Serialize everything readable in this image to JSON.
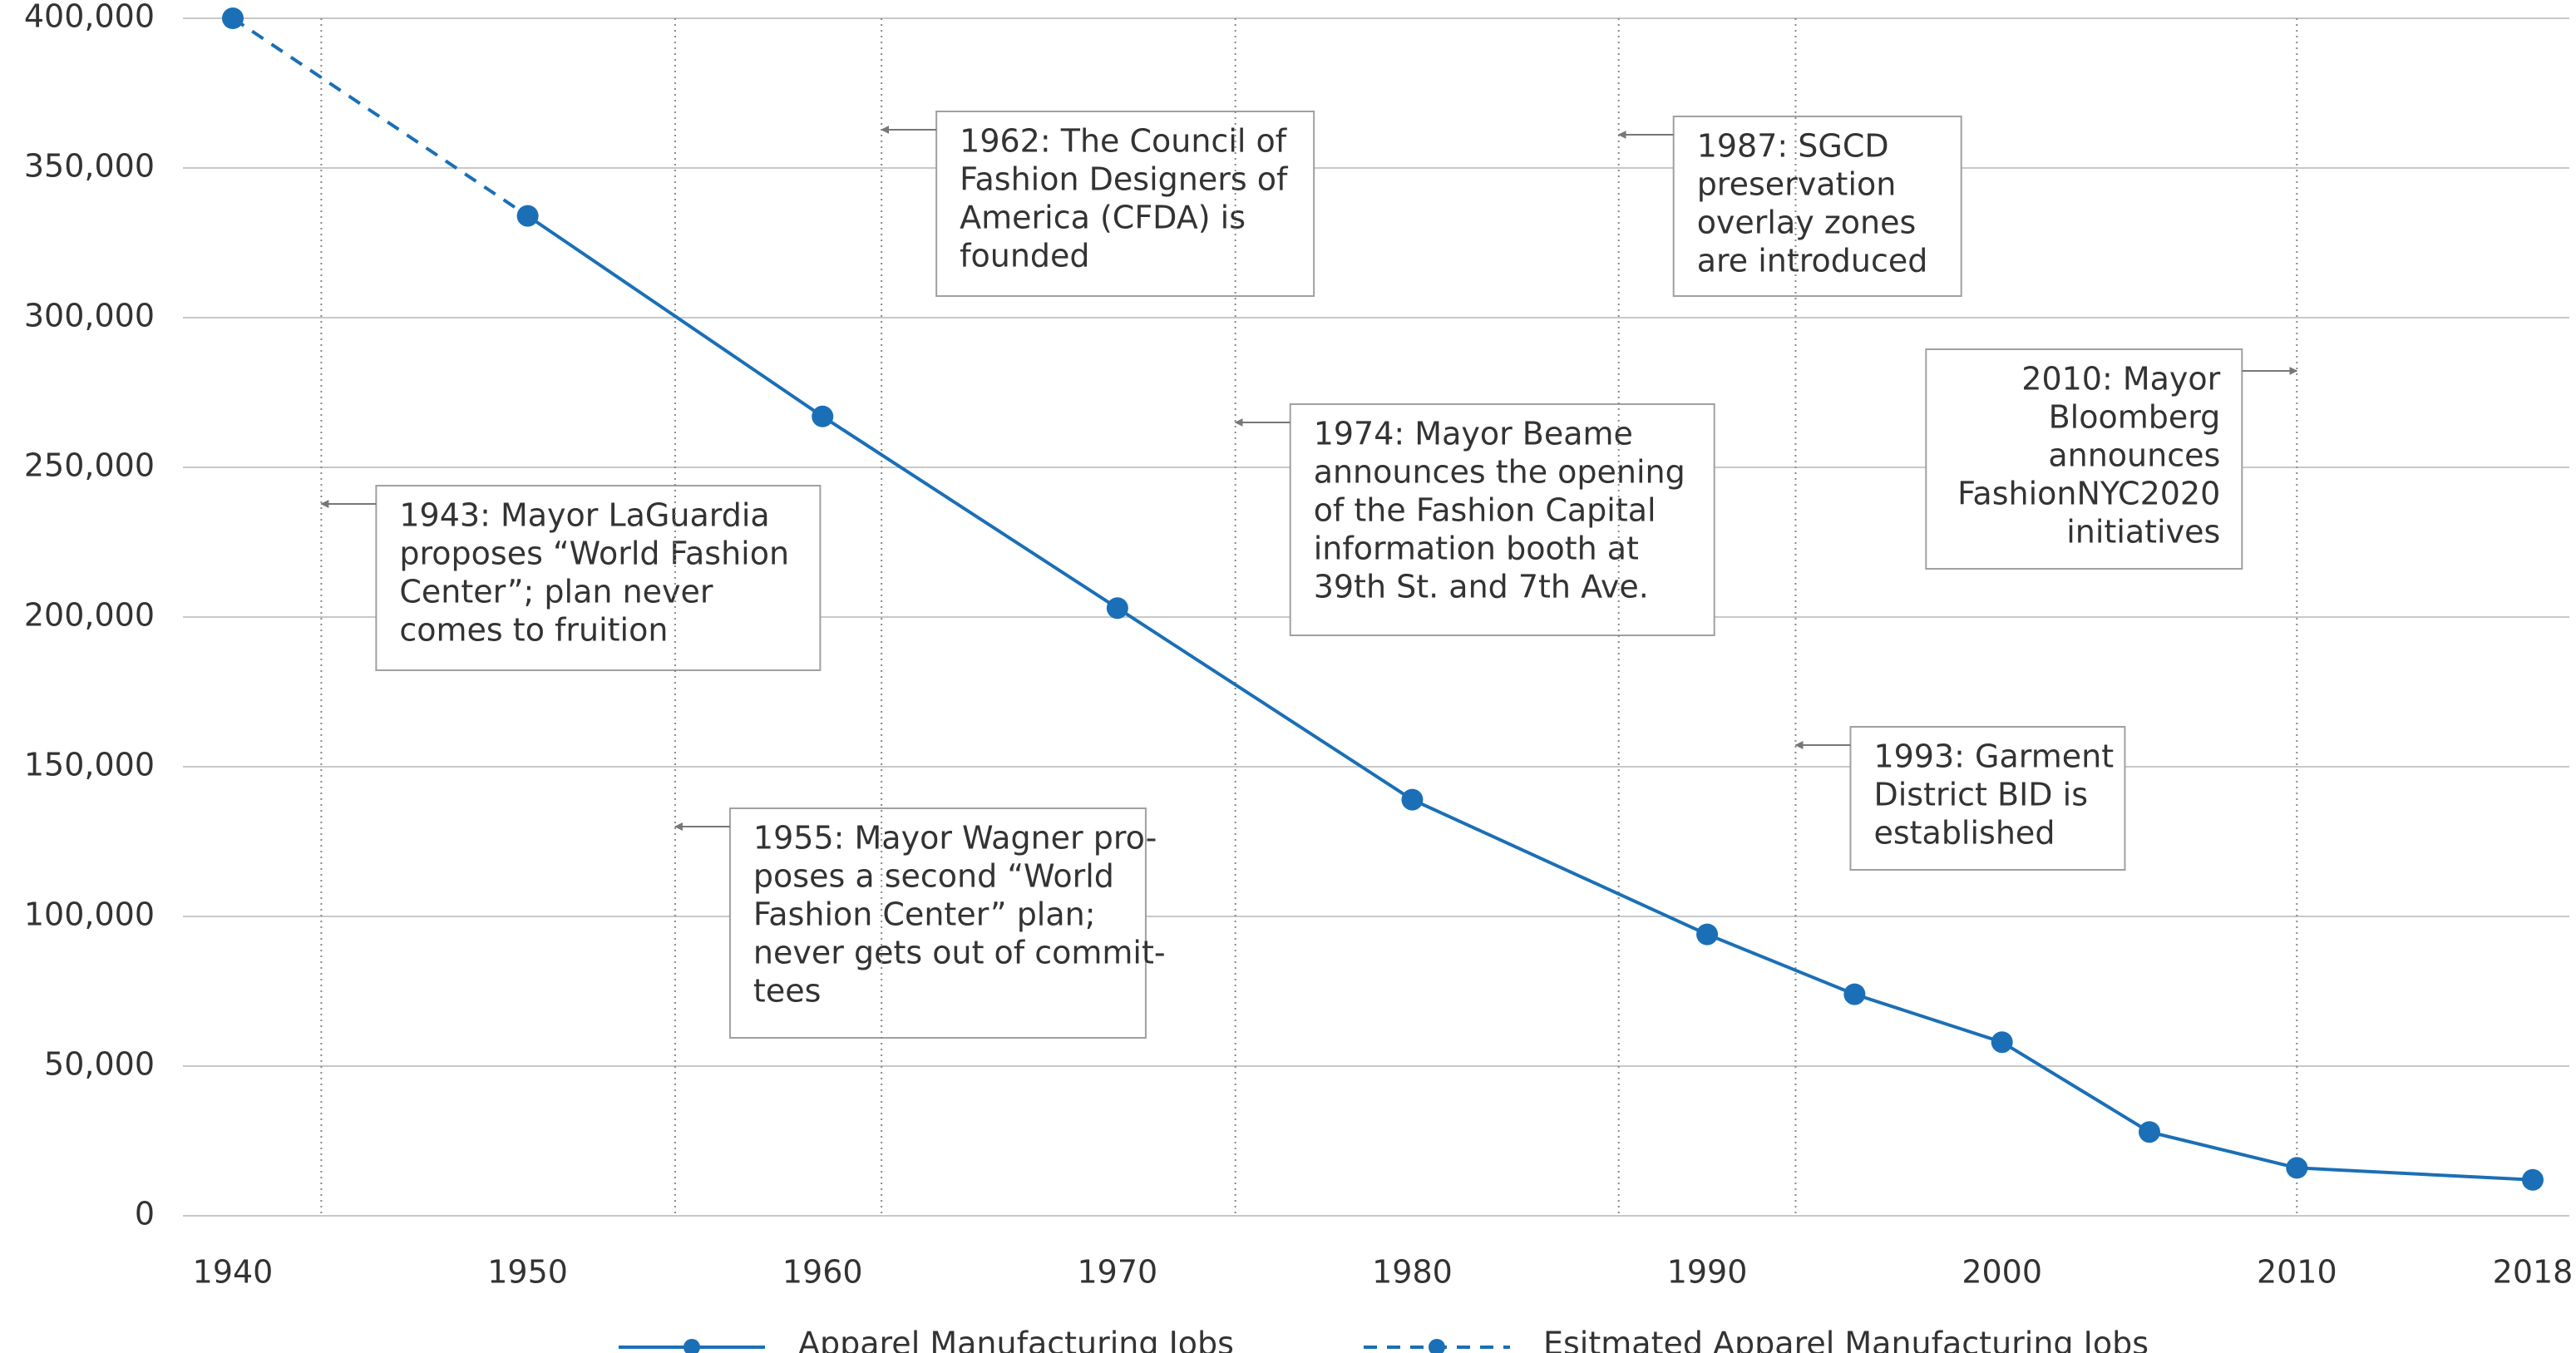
{
  "chart_data": {
    "type": "line",
    "x": [
      1940,
      1950,
      1960,
      1970,
      1980,
      1990,
      1995,
      2000,
      2005,
      2010,
      2018
    ],
    "xlim": [
      1940,
      2018
    ],
    "xticks": [
      1940,
      1950,
      1960,
      1970,
      1980,
      1990,
      2000,
      2010,
      2018
    ],
    "ylim": [
      0,
      400000
    ],
    "yticks": [
      0,
      {
        "value": 50000,
        "label": "50,000"
      },
      {
        "value": 100000,
        "label": "100,000"
      },
      {
        "value": 150000,
        "label": "150,000"
      },
      {
        "value": 200000,
        "label": "200,000"
      },
      {
        "value": 250000,
        "label": "250,000"
      },
      {
        "value": 300000,
        "label": "300,000"
      },
      {
        "value": 350000,
        "label": "350,000"
      },
      {
        "value": 400000,
        "label": "400,000"
      }
    ],
    "grid": true,
    "legend": "bottom",
    "series": [
      {
        "name": "Apparel Manufacturing Jobs",
        "color": "#1b6fb6",
        "style": "solid",
        "values": [
          null,
          334000,
          267000,
          203000,
          139000,
          94000,
          74000,
          58000,
          28000,
          16000,
          12000
        ]
      },
      {
        "name": "Esitmated Apparel Manufacturing Jobs",
        "color": "#1b6fb6",
        "style": "dashed",
        "values": [
          400000,
          334000,
          null,
          null,
          null,
          null,
          null,
          null,
          null,
          null,
          null
        ]
      }
    ],
    "annotations": [
      {
        "x": 1943,
        "lines": [
          "1943: Mayor LaGuardia",
          "proposes “World Fashion",
          "Center”; plan never",
          "comes to fruition"
        ]
      },
      {
        "x": 1955,
        "lines": [
          "1955: Mayor Wagner pro-",
          "poses a second “World",
          "Fashion Center” plan;",
          "never gets out of commit-",
          "tees"
        ]
      },
      {
        "x": 1962,
        "lines": [
          "1962: The Council of",
          "Fashion Designers of",
          "America (CFDA) is",
          "founded"
        ]
      },
      {
        "x": 1974,
        "lines": [
          "1974: Mayor Beame",
          "announces the opening",
          "of the Fashion Capital",
          "information booth at",
          "39th St. and 7th Ave."
        ]
      },
      {
        "x": 1987,
        "lines": [
          "1987: SGCD",
          "preservation",
          "overlay zones",
          "are introduced"
        ]
      },
      {
        "x": 1993,
        "lines": [
          "1993: Garment",
          "District BID is",
          "established"
        ]
      },
      {
        "x": 2010,
        "lines": [
          "2010: Mayor",
          "Bloomberg",
          "announces",
          "FashionNYC2020",
          "initiatives"
        ]
      }
    ]
  }
}
